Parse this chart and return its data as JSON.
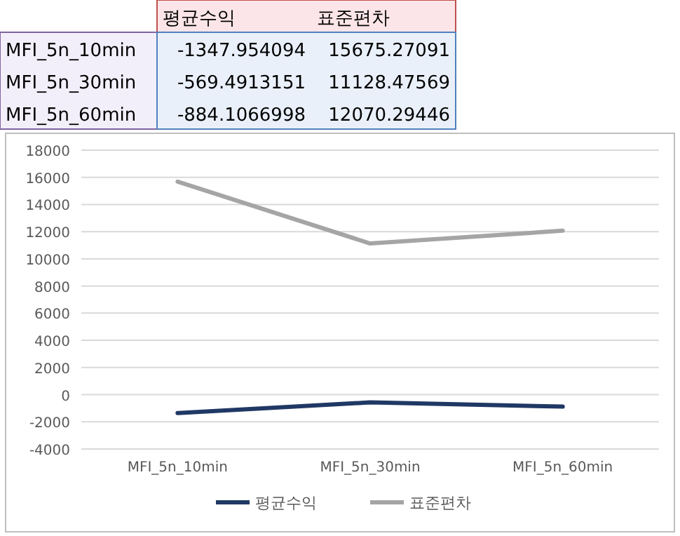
{
  "chart_data": [
    {
      "type": "other",
      "categories": [
        "MFI_5n_10min",
        "MFI_5n_30min",
        "MFI_5n_60min"
      ],
      "series": [
        {
          "name": "평균수익",
          "values": [
            -1347.954094,
            -569.4913151,
            -884.1066998
          ]
        },
        {
          "name": "표준편차",
          "values": [
            15675.27091,
            11128.47569,
            12070.29446
          ]
        }
      ],
      "data_labels": true
    },
    {
      "type": "line",
      "categories": [
        "MFI_5n_10min",
        "MFI_5n_30min",
        "MFI_5n_60min"
      ],
      "series": [
        {
          "name": "평균수익",
          "color": "#203864",
          "values": [
            -1350,
            -570,
            -880
          ]
        },
        {
          "name": "표준편차",
          "color": "#a5a5a5",
          "values": [
            15680,
            11130,
            12070
          ]
        }
      ],
      "ylim": [
        -4000,
        18000
      ],
      "yticks": [
        -4000,
        -2000,
        0,
        2000,
        4000,
        6000,
        8000,
        10000,
        12000,
        14000,
        16000,
        18000
      ],
      "grid": "y",
      "legend": "bottom"
    }
  ]
}
